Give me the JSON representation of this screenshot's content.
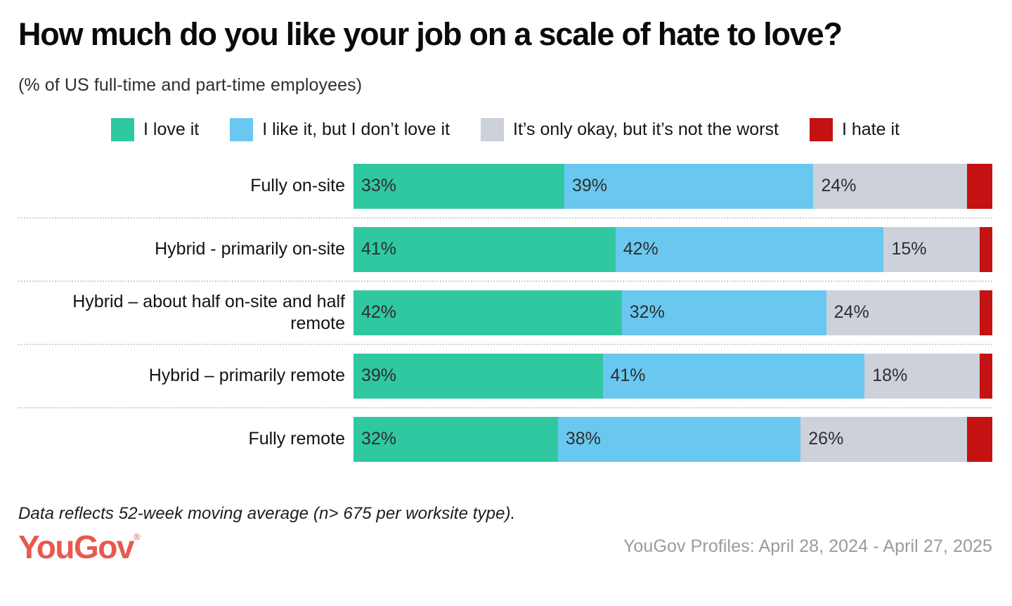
{
  "page": {
    "title": "How much do you like your job on a scale of hate to love?",
    "subtitle": "(% of US full-time and part-time employees)",
    "footnote": "Data reflects 52-week moving average (n> 675 per worksite type).",
    "source": "YouGov Profiles: April 28, 2024 - April 27, 2025",
    "logo_text": "YouGov",
    "logo_registered": "®",
    "logo_color": "#E8594E"
  },
  "chart_data": {
    "type": "bar",
    "stacked": true,
    "orientation": "horizontal",
    "unit": "%",
    "xlim": [
      0,
      100
    ],
    "grid": false,
    "legend_position": "top",
    "categories": [
      "Fully on-site",
      "Hybrid - primarily on-site",
      "Hybrid – about half on-site and half remote",
      "Hybrid – primarily remote",
      "Fully remote"
    ],
    "series": [
      {
        "name": "I love it",
        "color": "#30C8A0",
        "values": [
          33,
          41,
          42,
          39,
          32
        ],
        "labels_shown": true
      },
      {
        "name": "I like it, but I don’t love it",
        "color": "#6AC8F0",
        "values": [
          39,
          42,
          32,
          41,
          38
        ],
        "labels_shown": true
      },
      {
        "name": "It’s only okay, but it’s not the worst",
        "color": "#CDD1DA",
        "values": [
          24,
          15,
          24,
          18,
          26
        ],
        "labels_shown": true
      },
      {
        "name": "I hate it",
        "color": "#C41212",
        "values": [
          4,
          2,
          2,
          2,
          4
        ],
        "labels_shown": false
      }
    ]
  }
}
